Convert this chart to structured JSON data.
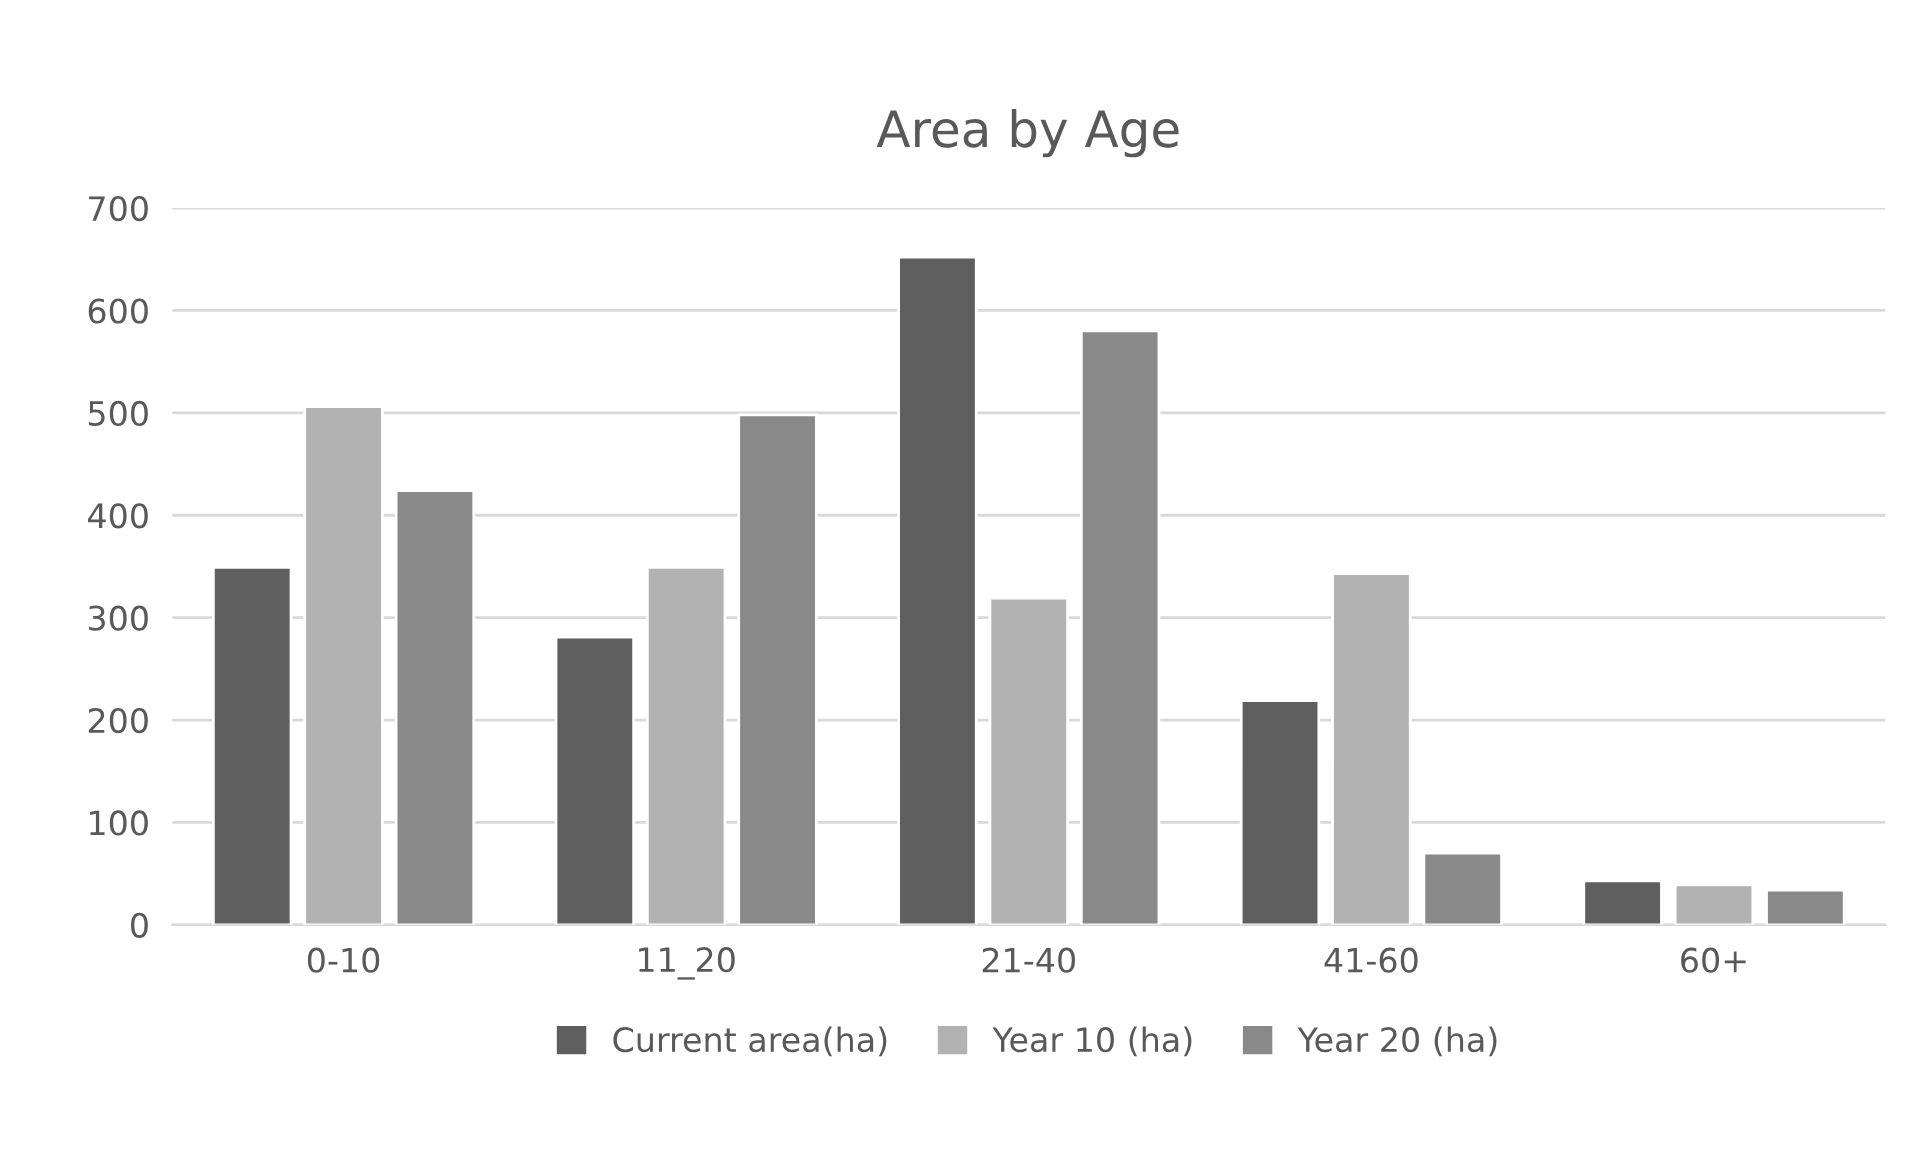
{
  "chart_data": {
    "type": "bar",
    "title": "Area by Age",
    "categories": [
      "0-10",
      "11_20",
      "21-40",
      "41-60",
      "60+"
    ],
    "series": [
      {
        "name": "Current area(ha)",
        "color": "#5f5f5f",
        "values": [
          349,
          281,
          652,
          219,
          43
        ]
      },
      {
        "name": "Year 10 (ha)",
        "color": "#b2b2b2",
        "values": [
          506,
          349,
          319,
          343,
          39
        ]
      },
      {
        "name": "Year 20 (ha)",
        "color": "#898989",
        "values": [
          424,
          498,
          580,
          70,
          34
        ]
      }
    ],
    "ylim": [
      0,
      700
    ],
    "yticks": [
      0,
      100,
      200,
      300,
      400,
      500,
      600,
      700
    ],
    "grid": "y",
    "legend": "bottom"
  }
}
